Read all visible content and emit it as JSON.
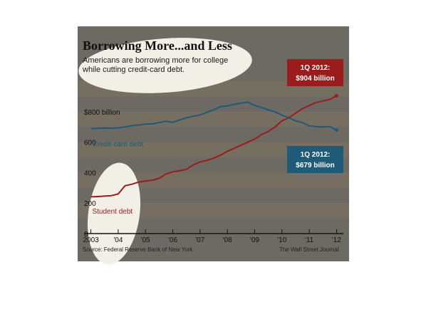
{
  "header": {
    "title": "Borrowing More...and Less",
    "subtitle": "Americans are borrowing more for college while cutting credit-card debt."
  },
  "footer": {
    "source": "Source: Federal Reserve Bank of New York",
    "credit": "The Wall Street Journal"
  },
  "colors": {
    "panel": "#6d6a64",
    "band": "#766e60",
    "student": "#9b1c1c",
    "credit": "#1f5a78",
    "highlight": "#f2efe7"
  },
  "chart_data": {
    "type": "line",
    "title": "Borrowing More...and Less",
    "xlabel": "",
    "ylabel": "",
    "ylim": [
      0,
      1000
    ],
    "xlim": [
      2002.75,
      2012.25
    ],
    "grid": true,
    "x_ticks": [
      {
        "value": 2003,
        "label": "2003"
      },
      {
        "value": 2004,
        "label": "'04"
      },
      {
        "value": 2005,
        "label": "'05"
      },
      {
        "value": 2006,
        "label": "'06"
      },
      {
        "value": 2007,
        "label": "'07"
      },
      {
        "value": 2008,
        "label": "'08"
      },
      {
        "value": 2009,
        "label": "'09"
      },
      {
        "value": 2010,
        "label": "'10"
      },
      {
        "value": 2011,
        "label": "'11"
      },
      {
        "value": 2012,
        "label": "'12"
      }
    ],
    "y_ticks": [
      {
        "value": 0,
        "label": "0"
      },
      {
        "value": 200,
        "label": "200"
      },
      {
        "value": 400,
        "label": "400"
      },
      {
        "value": 600,
        "label": "600"
      },
      {
        "value": 800,
        "label": "$800 billion"
      }
    ],
    "series": [
      {
        "name": "Student debt",
        "x": [
          2003,
          2003.25,
          2003.5,
          2003.75,
          2004,
          2004.25,
          2004.5,
          2004.75,
          2005,
          2005.25,
          2005.5,
          2005.75,
          2006,
          2006.25,
          2006.5,
          2006.75,
          2007,
          2007.25,
          2007.5,
          2007.75,
          2008,
          2008.25,
          2008.5,
          2008.75,
          2009,
          2009.25,
          2009.5,
          2009.75,
          2010,
          2010.25,
          2010.5,
          2010.75,
          2011,
          2011.25,
          2011.5,
          2011.75,
          2012
        ],
        "values": [
          241,
          243,
          246,
          249,
          260,
          314,
          324,
          338,
          345,
          350,
          363,
          390,
          405,
          412,
          422,
          450,
          470,
          480,
          495,
          515,
          540,
          560,
          580,
          600,
          620,
          650,
          670,
          700,
          740,
          760,
          790,
          820,
          840,
          860,
          870,
          880,
          904
        ]
      },
      {
        "name": "Credit-card debt",
        "x": [
          2003,
          2003.25,
          2003.5,
          2003.75,
          2004,
          2004.25,
          2004.5,
          2004.75,
          2005,
          2005.25,
          2005.5,
          2005.75,
          2006,
          2006.25,
          2006.5,
          2006.75,
          2007,
          2007.25,
          2007.5,
          2007.75,
          2008,
          2008.25,
          2008.5,
          2008.75,
          2009,
          2009.25,
          2009.5,
          2009.75,
          2010,
          2010.25,
          2010.5,
          2010.75,
          2011,
          2011.25,
          2011.5,
          2011.75,
          2012
        ],
        "values": [
          688,
          690,
          693,
          690,
          694,
          700,
          708,
          712,
          718,
          720,
          728,
          737,
          730,
          745,
          760,
          770,
          778,
          796,
          812,
          833,
          838,
          848,
          856,
          862,
          840,
          828,
          812,
          798,
          777,
          760,
          740,
          728,
          706,
          702,
          700,
          702,
          679
        ]
      }
    ],
    "annotations": [
      {
        "id": "student",
        "line1": "1Q 2012:",
        "line2": "$904 billion"
      },
      {
        "id": "credit",
        "line1": "1Q 2012:",
        "line2": "$679 billion"
      }
    ]
  }
}
